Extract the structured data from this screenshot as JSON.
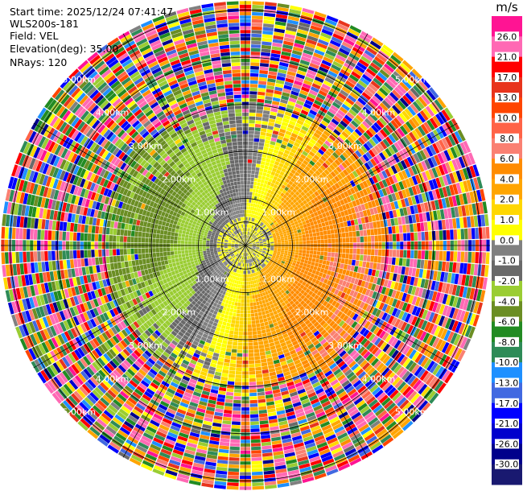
{
  "header": {
    "start_time": "Start time: 2025/12/24 07:41:47",
    "instrument": "WLS200s-181",
    "field": "Field: VEL",
    "elevation": "Elevation(deg): 35.00",
    "nrays": "NRays: 120"
  },
  "chart_data": {
    "type": "heatmap",
    "projection": "polar-ppi",
    "field": "VEL",
    "units": "m/s",
    "elevation_deg": 35.0,
    "n_rays": 120,
    "range_ring_labels_km": [
      "1.00km",
      "2.00km",
      "3.00km",
      "4.00km",
      "5.00km"
    ],
    "range_rings_km": [
      1,
      2,
      3,
      4,
      5
    ],
    "max_range_km": 5.2,
    "colorbar": {
      "unit_label": "m/s",
      "ticks": [
        "26.0",
        "21.0",
        "17.0",
        "13.0",
        "10.0",
        "8.0",
        "6.0",
        "4.0",
        "2.0",
        "1.0",
        "0.0",
        "-1.0",
        "-2.0",
        "-4.0",
        "-6.0",
        "-8.0",
        "-10.0",
        "-13.0",
        "-17.0",
        "-21.0",
        "-26.0",
        "-30.0"
      ],
      "colors": [
        "#ff1493",
        "#ff69b4",
        "#ff0000",
        "#e8341c",
        "#ff4500",
        "#ff6347",
        "#fa8072",
        "#ff8c00",
        "#ffa500",
        "#ffd700",
        "#ffff00",
        "#808080",
        "#696969",
        "#9acd32",
        "#6b8e23",
        "#228b22",
        "#2e8b57",
        "#1e90ff",
        "#4169e1",
        "#0000ff",
        "#0000cd",
        "#00008b",
        "#191970"
      ]
    },
    "pattern": {
      "near_field_gray_km": 0.6,
      "receding_sector": "east-southeast (yellow/orange, +1 to +6 m/s)",
      "approaching_sector": "west-southwest (green, -1 to -6 m/s)",
      "far_field": "noisy mixed velocities beyond ~3 km"
    }
  }
}
